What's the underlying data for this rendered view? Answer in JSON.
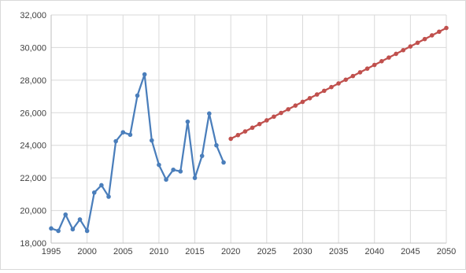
{
  "chart_data": {
    "type": "line",
    "title": "",
    "xlabel": "",
    "ylabel": "",
    "xlim": [
      1995,
      2050
    ],
    "ylim": [
      18000,
      32000
    ],
    "x_ticks": [
      1995,
      2000,
      2005,
      2010,
      2015,
      2020,
      2025,
      2030,
      2035,
      2040,
      2045,
      2050
    ],
    "x_tick_labels": [
      "1995",
      "2000",
      "2005",
      "2010",
      "2015",
      "2020",
      "2025",
      "2030",
      "2035",
      "2040",
      "2045",
      "2050"
    ],
    "y_ticks": [
      18000,
      20000,
      22000,
      24000,
      26000,
      28000,
      30000,
      32000
    ],
    "y_tick_labels": [
      "18,000",
      "20,000",
      "22,000",
      "24,000",
      "26,000",
      "28,000",
      "30,000",
      "32,000"
    ],
    "grid": "vertical and horizontal",
    "legend": "none",
    "series": [
      {
        "color": "#4a7ebb",
        "marker": "circle",
        "x": [
          1995,
          1996,
          1997,
          1998,
          1999,
          2000,
          2001,
          2002,
          2003,
          2004,
          2005,
          2006,
          2007,
          2008,
          2009,
          2010,
          2011,
          2012,
          2013,
          2014,
          2015,
          2016,
          2017,
          2018,
          2019
        ],
        "values": [
          18900,
          18750,
          19750,
          18850,
          19450,
          18750,
          21100,
          21550,
          20850,
          24250,
          24800,
          24650,
          27050,
          28350,
          24300,
          22800,
          21900,
          22500,
          22400,
          25450,
          22000,
          23350,
          25950,
          24000,
          22950
        ]
      },
      {
        "color": "#c0504d",
        "marker": "circle",
        "x": [
          2020,
          2021,
          2022,
          2023,
          2024,
          2025,
          2026,
          2027,
          2028,
          2029,
          2030,
          2031,
          2032,
          2033,
          2034,
          2035,
          2036,
          2037,
          2038,
          2039,
          2040,
          2041,
          2042,
          2043,
          2044,
          2045,
          2046,
          2047,
          2048,
          2049,
          2050
        ],
        "values": [
          24400,
          24627,
          24853,
          25080,
          25307,
          25533,
          25760,
          25987,
          26213,
          26440,
          26667,
          26893,
          27120,
          27347,
          27573,
          27800,
          28027,
          28253,
          28480,
          28707,
          28933,
          29160,
          29387,
          29613,
          29840,
          30067,
          30293,
          30520,
          30747,
          30973,
          31200
        ]
      }
    ]
  }
}
